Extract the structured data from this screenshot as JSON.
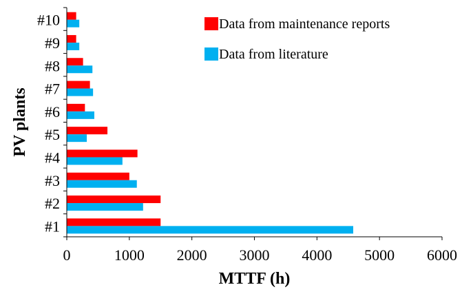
{
  "chart_data": {
    "type": "bar",
    "orientation": "horizontal",
    "title": "",
    "xlabel": "MTTF (h)",
    "ylabel": "PV plants",
    "xlim": [
      0,
      6000
    ],
    "xticks": [
      "0",
      "1000",
      "2000",
      "3000",
      "4000",
      "5000",
      "6000"
    ],
    "categories": [
      "#1",
      "#2",
      "#3",
      "#4",
      "#5",
      "#6",
      "#7",
      "#8",
      "#9",
      "#10"
    ],
    "series": [
      {
        "name": "Data from maintenance reports",
        "color": "#ff0000",
        "values": [
          1500,
          1500,
          1000,
          1130,
          650,
          290,
          370,
          260,
          150,
          150
        ]
      },
      {
        "name": "Data from literature",
        "color": "#00b0f0",
        "values": [
          4580,
          1220,
          1120,
          890,
          320,
          440,
          420,
          410,
          200,
          200
        ]
      }
    ],
    "legend_position": "top-right",
    "grid": false
  }
}
